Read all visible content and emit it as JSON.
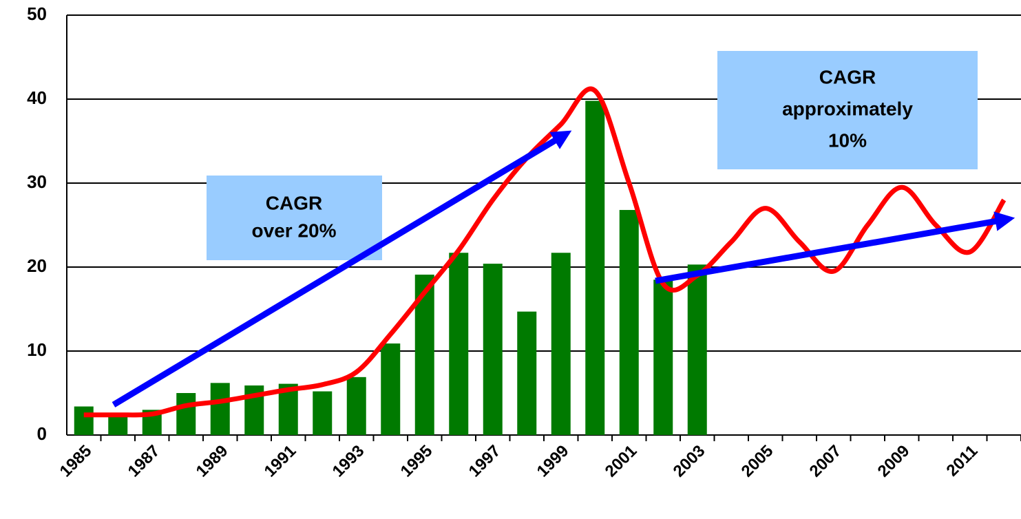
{
  "chart_data": {
    "type": "bar",
    "categories": [
      "1985",
      null,
      "1987",
      null,
      "1989",
      null,
      "1991",
      null,
      "1993",
      null,
      "1995",
      null,
      "1997",
      null,
      "1999",
      null,
      "2001",
      null,
      "2003",
      null,
      "2005",
      null,
      "2007",
      null,
      "2009",
      null,
      "2011",
      null
    ],
    "series": [
      {
        "type": "bar",
        "color": "#007a00",
        "values": [
          3.4,
          2.5,
          3.0,
          5.0,
          6.2,
          5.9,
          6.1,
          5.2,
          6.9,
          10.9,
          19.1,
          21.7,
          20.4,
          14.7,
          21.7,
          39.8,
          26.8,
          18.5,
          20.3,
          null,
          null,
          null,
          null,
          null,
          null,
          null,
          null,
          null
        ]
      },
      {
        "type": "line",
        "color": "#ff0000",
        "values": [
          2.4,
          2.4,
          2.5,
          3.5,
          4.0,
          4.7,
          5.4,
          6.0,
          7.5,
          12,
          17,
          22,
          28,
          33,
          37,
          41,
          30,
          18,
          19,
          23,
          27,
          23,
          19.5,
          25,
          29.5,
          25,
          21.8,
          28
        ]
      }
    ],
    "ylim": [
      0,
      50
    ],
    "yticks": [
      0,
      10,
      20,
      30,
      40,
      50
    ],
    "grid": true,
    "annotations": [
      [
        "CAGR",
        "over 20%"
      ],
      [
        "CAGR",
        "approximately",
        "10%"
      ]
    ]
  }
}
